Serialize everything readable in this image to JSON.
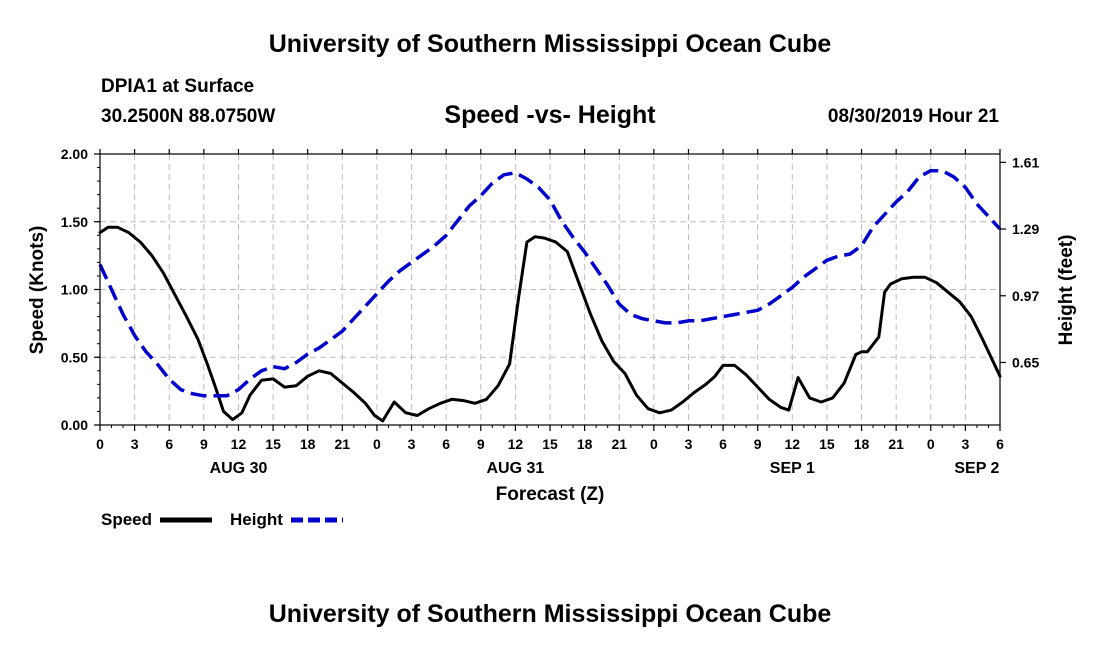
{
  "header": {
    "title": "University of Southern Mississippi Ocean Cube",
    "station": "DPIA1 at Surface",
    "coords": "30.2500N 88.0750W",
    "chart_title": "Speed -vs- Height",
    "datetime": "08/30/2019 Hour 21"
  },
  "footer": {
    "title": "University of Southern Mississippi Ocean Cube"
  },
  "chart_data": {
    "type": "line",
    "title": "Speed -vs- Height",
    "xlabel": "Forecast (Z)",
    "ylabel_left": "Speed (Knots)",
    "ylabel_right": "Height (feet)",
    "x_unit": "hours since 2019-08-30 00Z",
    "xlim": [
      0,
      78
    ],
    "ylim_left": [
      0,
      2.0
    ],
    "ylim_right": [
      0.35,
      1.65
    ],
    "left_ticks": [
      "0.00",
      "0.50",
      "1.00",
      "1.50",
      "2.00"
    ],
    "right_ticks": [
      "0.65",
      "0.97",
      "1.29",
      "1.61"
    ],
    "x_ticks": [
      {
        "x": 0,
        "label": "0"
      },
      {
        "x": 3,
        "label": "3"
      },
      {
        "x": 6,
        "label": "6"
      },
      {
        "x": 9,
        "label": "9"
      },
      {
        "x": 12,
        "label": "12"
      },
      {
        "x": 15,
        "label": "15"
      },
      {
        "x": 18,
        "label": "18"
      },
      {
        "x": 21,
        "label": "21"
      },
      {
        "x": 24,
        "label": "0"
      },
      {
        "x": 27,
        "label": "3"
      },
      {
        "x": 30,
        "label": "6"
      },
      {
        "x": 33,
        "label": "9"
      },
      {
        "x": 36,
        "label": "12"
      },
      {
        "x": 39,
        "label": "15"
      },
      {
        "x": 42,
        "label": "18"
      },
      {
        "x": 45,
        "label": "21"
      },
      {
        "x": 48,
        "label": "0"
      },
      {
        "x": 51,
        "label": "3"
      },
      {
        "x": 54,
        "label": "6"
      },
      {
        "x": 57,
        "label": "9"
      },
      {
        "x": 60,
        "label": "12"
      },
      {
        "x": 63,
        "label": "15"
      },
      {
        "x": 66,
        "label": "18"
      },
      {
        "x": 69,
        "label": "21"
      },
      {
        "x": 72,
        "label": "0"
      },
      {
        "x": 75,
        "label": "3"
      },
      {
        "x": 78,
        "label": "6"
      }
    ],
    "date_labels": [
      {
        "x": 12,
        "label": "AUG 30"
      },
      {
        "x": 36,
        "label": "AUG 31"
      },
      {
        "x": 60,
        "label": "SEP 1"
      },
      {
        "x": 76,
        "label": "SEP 2"
      }
    ],
    "grid": true,
    "legend_position": "bottom-left",
    "series": [
      {
        "name": "Speed",
        "axis": "left",
        "color": "#000000",
        "style": "solid",
        "x": [
          0,
          0.7,
          1.5,
          2.5,
          3.5,
          4.5,
          5.5,
          6.5,
          7.5,
          8.5,
          9.3,
          10,
          10.7,
          11.5,
          12.3,
          13,
          14,
          15,
          16,
          17,
          18,
          19,
          20,
          21,
          22,
          23,
          23.8,
          24.5,
          25.5,
          26.5,
          27.5,
          28.5,
          29.5,
          30.5,
          31.5,
          32.5,
          33.5,
          34.5,
          35.5,
          36.3,
          37,
          37.7,
          38.5,
          39.5,
          40.5,
          41.5,
          42.5,
          43.5,
          44.5,
          45.5,
          46.5,
          47.5,
          48.5,
          49.5,
          50.5,
          51.5,
          52.5,
          53.3,
          54,
          55,
          56,
          57,
          58,
          59,
          59.7,
          60.5,
          61.5,
          62.5,
          63.5,
          64.5,
          65.5,
          66,
          66.5,
          67.5,
          68,
          68.5,
          69.5,
          70.5,
          71.5,
          72.5,
          73.5,
          74.5,
          75.5,
          76.5,
          78
        ],
        "y": [
          1.42,
          1.46,
          1.46,
          1.42,
          1.35,
          1.25,
          1.12,
          0.96,
          0.8,
          0.63,
          0.45,
          0.28,
          0.1,
          0.04,
          0.09,
          0.22,
          0.33,
          0.34,
          0.28,
          0.29,
          0.36,
          0.4,
          0.38,
          0.31,
          0.24,
          0.16,
          0.07,
          0.03,
          0.17,
          0.09,
          0.07,
          0.12,
          0.16,
          0.19,
          0.18,
          0.16,
          0.19,
          0.29,
          0.45,
          0.95,
          1.35,
          1.39,
          1.38,
          1.35,
          1.28,
          1.05,
          0.82,
          0.62,
          0.47,
          0.38,
          0.22,
          0.12,
          0.09,
          0.11,
          0.17,
          0.24,
          0.3,
          0.36,
          0.44,
          0.44,
          0.37,
          0.28,
          0.19,
          0.13,
          0.11,
          0.35,
          0.2,
          0.17,
          0.2,
          0.31,
          0.52,
          0.54,
          0.54,
          0.65,
          0.98,
          1.04,
          1.08,
          1.09,
          1.09,
          1.05,
          0.98,
          0.91,
          0.8,
          0.63,
          0.36
        ]
      },
      {
        "name": "Height",
        "axis": "right",
        "color": "#0000cc",
        "style": "dashed",
        "x": [
          0,
          1,
          2,
          3,
          4,
          5,
          6,
          7,
          8,
          9,
          10,
          11,
          12,
          13,
          14,
          15,
          16,
          17,
          18,
          19,
          20,
          21,
          22,
          23,
          24,
          25,
          26,
          27,
          28,
          29,
          30,
          31,
          32,
          33,
          34,
          35,
          36,
          37,
          38,
          39,
          40,
          41,
          42,
          43,
          44,
          45,
          46,
          47,
          48,
          49,
          50,
          51,
          52,
          53,
          54,
          55,
          56,
          57,
          58,
          59,
          60,
          61,
          62,
          63,
          64,
          65,
          66,
          67,
          68,
          69,
          70,
          71,
          72,
          73,
          74,
          75,
          76,
          77,
          78
        ],
        "y": [
          1.12,
          1.0,
          0.88,
          0.78,
          0.7,
          0.64,
          0.57,
          0.52,
          0.5,
          0.49,
          0.49,
          0.49,
          0.52,
          0.57,
          0.61,
          0.63,
          0.62,
          0.65,
          0.69,
          0.72,
          0.76,
          0.8,
          0.86,
          0.92,
          0.98,
          1.04,
          1.09,
          1.13,
          1.17,
          1.21,
          1.26,
          1.33,
          1.4,
          1.45,
          1.51,
          1.55,
          1.56,
          1.53,
          1.49,
          1.43,
          1.33,
          1.25,
          1.18,
          1.1,
          1.02,
          0.93,
          0.88,
          0.86,
          0.85,
          0.84,
          0.84,
          0.85,
          0.85,
          0.86,
          0.87,
          0.88,
          0.89,
          0.9,
          0.93,
          0.97,
          1.01,
          1.06,
          1.1,
          1.14,
          1.16,
          1.17,
          1.21,
          1.3,
          1.36,
          1.42,
          1.47,
          1.54,
          1.57,
          1.57,
          1.54,
          1.49,
          1.41,
          1.35,
          1.29
        ]
      }
    ]
  }
}
